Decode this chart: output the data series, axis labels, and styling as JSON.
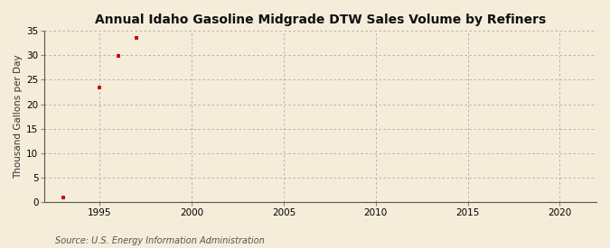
{
  "title": "Annual Idaho Gasoline Midgrade DTW Sales Volume by Refiners",
  "ylabel": "Thousand Gallons per Day",
  "source": "Source: U.S. Energy Information Administration",
  "background_color": "#f5edda",
  "plot_bg_color": "#f5edda",
  "x_data": [
    1993,
    1995,
    1996,
    1997
  ],
  "y_data": [
    0.9,
    23.5,
    29.8,
    33.5
  ],
  "marker_color": "#cc0000",
  "marker": "s",
  "marker_size": 3.5,
  "xlim": [
    1992,
    2022
  ],
  "ylim": [
    0,
    35
  ],
  "xticks": [
    1995,
    2000,
    2005,
    2010,
    2015,
    2020
  ],
  "yticks": [
    0,
    5,
    10,
    15,
    20,
    25,
    30,
    35
  ],
  "grid_color": "#aaaaaa",
  "title_fontsize": 10,
  "label_fontsize": 7.5,
  "tick_fontsize": 7.5,
  "source_fontsize": 7
}
